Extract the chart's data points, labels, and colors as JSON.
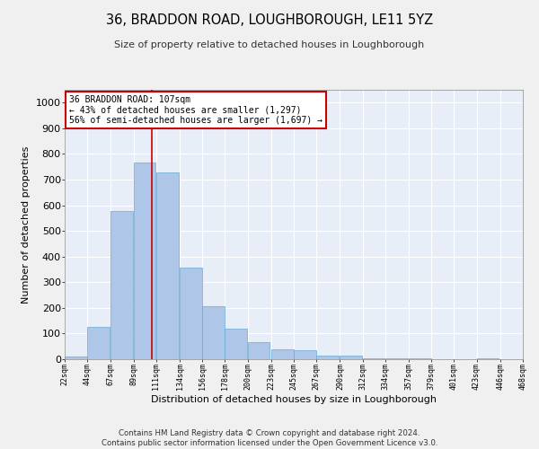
{
  "title": "36, BRADDON ROAD, LOUGHBOROUGH, LE11 5YZ",
  "subtitle": "Size of property relative to detached houses in Loughborough",
  "xlabel": "Distribution of detached houses by size in Loughborough",
  "ylabel": "Number of detached properties",
  "bar_color": "#aec6e8",
  "bar_edge_color": "#6aaad4",
  "background_color": "#e8eef8",
  "grid_color": "#ffffff",
  "vline_value": 107,
  "vline_color": "#cc0000",
  "annotation_text": "36 BRADDON ROAD: 107sqm\n← 43% of detached houses are smaller (1,297)\n56% of semi-detached houses are larger (1,697) →",
  "annotation_box_color": "#ffffff",
  "annotation_box_edge": "#cc0000",
  "footer": "Contains HM Land Registry data © Crown copyright and database right 2024.\nContains public sector information licensed under the Open Government Licence v3.0.",
  "bin_labels": [
    "22sqm",
    "44sqm",
    "67sqm",
    "89sqm",
    "111sqm",
    "134sqm",
    "156sqm",
    "178sqm",
    "200sqm",
    "223sqm",
    "245sqm",
    "267sqm",
    "290sqm",
    "312sqm",
    "334sqm",
    "357sqm",
    "379sqm",
    "401sqm",
    "423sqm",
    "446sqm",
    "468sqm"
  ],
  "bin_starts": [
    22,
    44,
    67,
    89,
    111,
    134,
    156,
    178,
    200,
    223,
    245,
    267,
    290,
    312,
    334,
    357,
    379,
    401,
    423,
    446
  ],
  "bin_width": 22,
  "values": [
    10,
    125,
    578,
    768,
    727,
    358,
    208,
    118,
    66,
    40,
    36,
    15,
    15,
    5,
    3,
    3,
    0,
    0,
    5,
    0
  ],
  "ylim": [
    0,
    1050
  ],
  "yticks": [
    0,
    100,
    200,
    300,
    400,
    500,
    600,
    700,
    800,
    900,
    1000
  ],
  "fig_bg": "#f0f0f0"
}
